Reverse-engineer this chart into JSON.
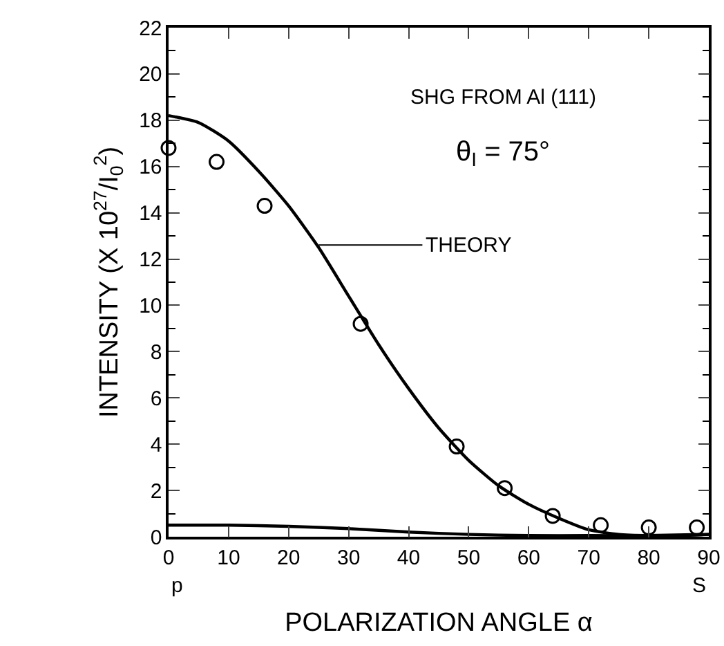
{
  "chart_data": {
    "type": "scatter",
    "xlabel": "POLARIZATION ANGLE α",
    "ylabel": "INTENSITY (X 10$^{27}$/I$_{0}$$^{2}$)",
    "xlim": [
      0,
      90
    ],
    "xticks": [
      0,
      10,
      20,
      30,
      40,
      50,
      60,
      70,
      80,
      90
    ],
    "ylim": [
      0,
      22
    ],
    "yticks": [
      0,
      2,
      4,
      6,
      8,
      10,
      12,
      14,
      16,
      18,
      20,
      22
    ],
    "grid": false,
    "series": [
      {
        "marker": "circle",
        "color": "#000000",
        "x": [
          0,
          8,
          16,
          32,
          48,
          56,
          64,
          72,
          80,
          88
        ],
        "values": [
          16.8,
          16.2,
          14.3,
          9.2,
          3.9,
          2.1,
          0.9,
          0.5,
          0.4,
          0.4
        ]
      },
      {
        "type": "line",
        "color": "#000000",
        "line_style": "solid",
        "x": [
          0,
          5,
          10,
          15,
          20,
          25,
          30,
          35,
          40,
          45,
          50,
          55,
          60,
          65,
          70,
          75,
          80,
          85,
          90
        ],
        "values": [
          18.2,
          17.9,
          17.1,
          15.8,
          14.3,
          12.5,
          10.4,
          8.3,
          6.4,
          4.7,
          3.3,
          2.2,
          1.4,
          0.8,
          0.3,
          0.1,
          0.05,
          0.05,
          0.1
        ]
      },
      {
        "type": "line",
        "color": "#000000",
        "line_style": "solid",
        "x": [
          0,
          10,
          20,
          30,
          40,
          50,
          60,
          70,
          80,
          90
        ],
        "values": [
          0.5,
          0.5,
          0.45,
          0.35,
          0.2,
          0.1,
          0.05,
          0.05,
          0.05,
          0.1
        ]
      }
    ],
    "annotations": [
      "SHG FROM Al (111)",
      "θ$_{I}$ = 75°",
      "THEORY",
      "p",
      "S"
    ]
  }
}
